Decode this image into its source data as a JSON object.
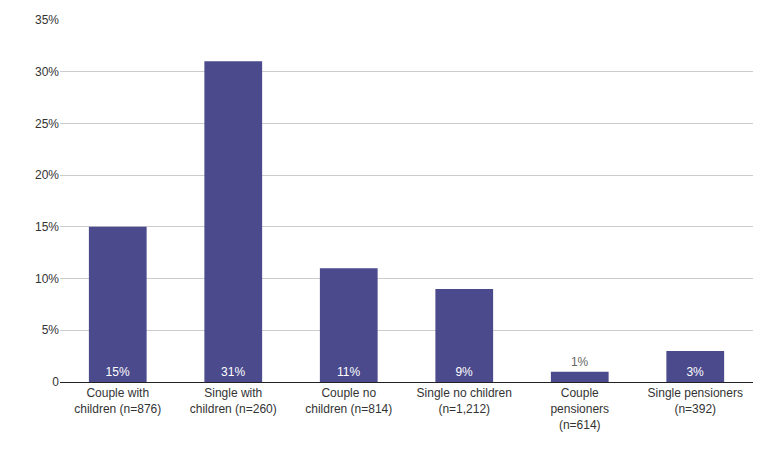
{
  "chart_data": {
    "type": "bar",
    "categories": [
      "Couple with\nchildren (n=876)",
      "Single with\nchildren (n=260)",
      "Couple no\nchildren (n=814)",
      "Single no children\n(n=1,212)",
      "Couple\npensioners\n(n=614)",
      "Single pensioners\n(n=392)"
    ],
    "values": [
      15,
      31,
      11,
      9,
      1,
      3
    ],
    "value_labels": [
      "15%",
      "31%",
      "11%",
      "9%",
      "1%",
      "3%"
    ],
    "color": "#4a4a8c",
    "ylim": [
      0,
      35
    ],
    "yticks": [
      0,
      {
        "value": 5,
        "label": "5%"
      },
      {
        "value": 10,
        "label": "10%"
      },
      {
        "value": 15,
        "label": "15%"
      },
      {
        "value": 20,
        "label": "20%"
      },
      {
        "value": 25,
        "label": "25%"
      },
      {
        "value": 30,
        "label": "30%"
      },
      {
        "value": 35,
        "label": "35%"
      }
    ],
    "grid": true,
    "data_labels": true
  }
}
